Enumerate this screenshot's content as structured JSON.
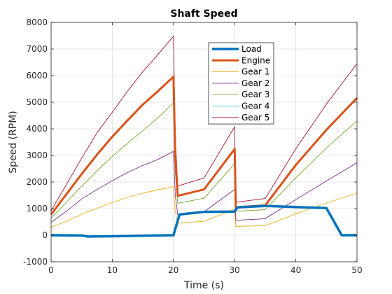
{
  "chart_data": {
    "type": "line",
    "title": "Shaft Speed",
    "xlabel": "Time (s)",
    "ylabel": "Speed (RPM)",
    "xlim": [
      0,
      50
    ],
    "ylim": [
      -1000,
      8000
    ],
    "xticks": [
      "0",
      "10",
      "20",
      "30",
      "40",
      "50"
    ],
    "yticks": [
      "-1000",
      "0",
      "1000",
      "2000",
      "3000",
      "4000",
      "5000",
      "6000",
      "7000",
      "8000"
    ],
    "grid": true,
    "legend_position": "top-right",
    "series": [
      {
        "name": "Gear 1",
        "color": "#EDB120",
        "width": 0.9,
        "points": [
          [
            0,
            300
          ],
          [
            2.5,
            520
          ],
          [
            5,
            790
          ],
          [
            7.5,
            1010
          ],
          [
            10,
            1230
          ],
          [
            12.5,
            1420
          ],
          [
            15,
            1580
          ],
          [
            17.5,
            1710
          ],
          [
            20,
            1830
          ],
          [
            20.3,
            900
          ],
          [
            20.7,
            460
          ],
          [
            25,
            520
          ],
          [
            30,
            980
          ],
          [
            30.2,
            330
          ],
          [
            35,
            360
          ],
          [
            40,
            800
          ],
          [
            45,
            1210
          ],
          [
            50,
            1580
          ]
        ]
      },
      {
        "name": "Gear 2",
        "color": "#7E2F8E",
        "width": 0.9,
        "points": [
          [
            0,
            480
          ],
          [
            2.5,
            900
          ],
          [
            5,
            1360
          ],
          [
            7.5,
            1720
          ],
          [
            10,
            2050
          ],
          [
            12.5,
            2360
          ],
          [
            15,
            2620
          ],
          [
            17.5,
            2850
          ],
          [
            20,
            3150
          ],
          [
            20.3,
            1500
          ],
          [
            20.7,
            780
          ],
          [
            25,
            880
          ],
          [
            30,
            1720
          ],
          [
            30.2,
            560
          ],
          [
            35,
            620
          ],
          [
            40,
            1340
          ],
          [
            45,
            2040
          ],
          [
            50,
            2720
          ]
        ]
      },
      {
        "name": "Gear 3",
        "color": "#77AC30",
        "width": 0.9,
        "points": [
          [
            0,
            640
          ],
          [
            2.5,
            1240
          ],
          [
            5,
            1840
          ],
          [
            7.5,
            2420
          ],
          [
            10,
            2960
          ],
          [
            12.5,
            3460
          ],
          [
            15,
            3930
          ],
          [
            17.5,
            4420
          ],
          [
            20,
            4980
          ],
          [
            20.3,
            2400
          ],
          [
            20.7,
            1200
          ],
          [
            25,
            1390
          ],
          [
            30,
            2690
          ],
          [
            30.2,
            900
          ],
          [
            35,
            960
          ],
          [
            40,
            2160
          ],
          [
            45,
            3280
          ],
          [
            50,
            4300
          ]
        ]
      },
      {
        "name": "Gear 4",
        "color": "#4DBEEE",
        "width": 0.9,
        "points": [
          [
            0,
            780
          ],
          [
            2.5,
            1540
          ],
          [
            5,
            2300
          ],
          [
            7.5,
            3030
          ],
          [
            10,
            3700
          ],
          [
            12.5,
            4320
          ],
          [
            15,
            4910
          ],
          [
            17.5,
            5420
          ],
          [
            20,
            5960
          ],
          [
            20.3,
            2900
          ],
          [
            20.7,
            1480
          ],
          [
            25,
            1720
          ],
          [
            30,
            3240
          ],
          [
            30.2,
            1050
          ],
          [
            35,
            1120
          ],
          [
            40,
            2640
          ],
          [
            45,
            3960
          ],
          [
            50,
            5160
          ]
        ]
      },
      {
        "name": "Gear 5",
        "color": "#A2142F",
        "width": 0.9,
        "points": [
          [
            0,
            920
          ],
          [
            2.5,
            1900
          ],
          [
            5,
            2900
          ],
          [
            7.5,
            3850
          ],
          [
            10,
            4620
          ],
          [
            12.5,
            5420
          ],
          [
            15,
            6150
          ],
          [
            17.5,
            6800
          ],
          [
            20,
            7480
          ],
          [
            20.3,
            3700
          ],
          [
            20.7,
            1850
          ],
          [
            25,
            2150
          ],
          [
            30,
            4080
          ],
          [
            30.2,
            1240
          ],
          [
            35,
            1380
          ],
          [
            40,
            3250
          ],
          [
            45,
            4930
          ],
          [
            50,
            6450
          ]
        ]
      },
      {
        "name": "Engine",
        "color": "#D95319",
        "width": 3,
        "points": [
          [
            0,
            780
          ],
          [
            2.5,
            1540
          ],
          [
            5,
            2300
          ],
          [
            7.5,
            3030
          ],
          [
            10,
            3700
          ],
          [
            12.5,
            4320
          ],
          [
            15,
            4910
          ],
          [
            17.5,
            5420
          ],
          [
            20,
            5960
          ],
          [
            20.3,
            2900
          ],
          [
            20.7,
            1480
          ],
          [
            25,
            1720
          ],
          [
            30,
            3240
          ],
          [
            30.2,
            1050
          ],
          [
            35,
            1120
          ],
          [
            40,
            2640
          ],
          [
            45,
            3960
          ],
          [
            50,
            5160
          ]
        ]
      },
      {
        "name": "Load",
        "color": "#0072BD",
        "width": 3.5,
        "points": [
          [
            0,
            0
          ],
          [
            5,
            -10
          ],
          [
            6,
            -50
          ],
          [
            10,
            -40
          ],
          [
            15,
            -20
          ],
          [
            20,
            0
          ],
          [
            21,
            780
          ],
          [
            25,
            880
          ],
          [
            30,
            890
          ],
          [
            30.5,
            1050
          ],
          [
            35,
            1100
          ],
          [
            40,
            1060
          ],
          [
            45,
            1020
          ],
          [
            47.5,
            0
          ],
          [
            50,
            0
          ]
        ]
      }
    ],
    "legend_order": [
      "Load",
      "Engine",
      "Gear 1",
      "Gear 2",
      "Gear 3",
      "Gear 4",
      "Gear 5"
    ]
  }
}
